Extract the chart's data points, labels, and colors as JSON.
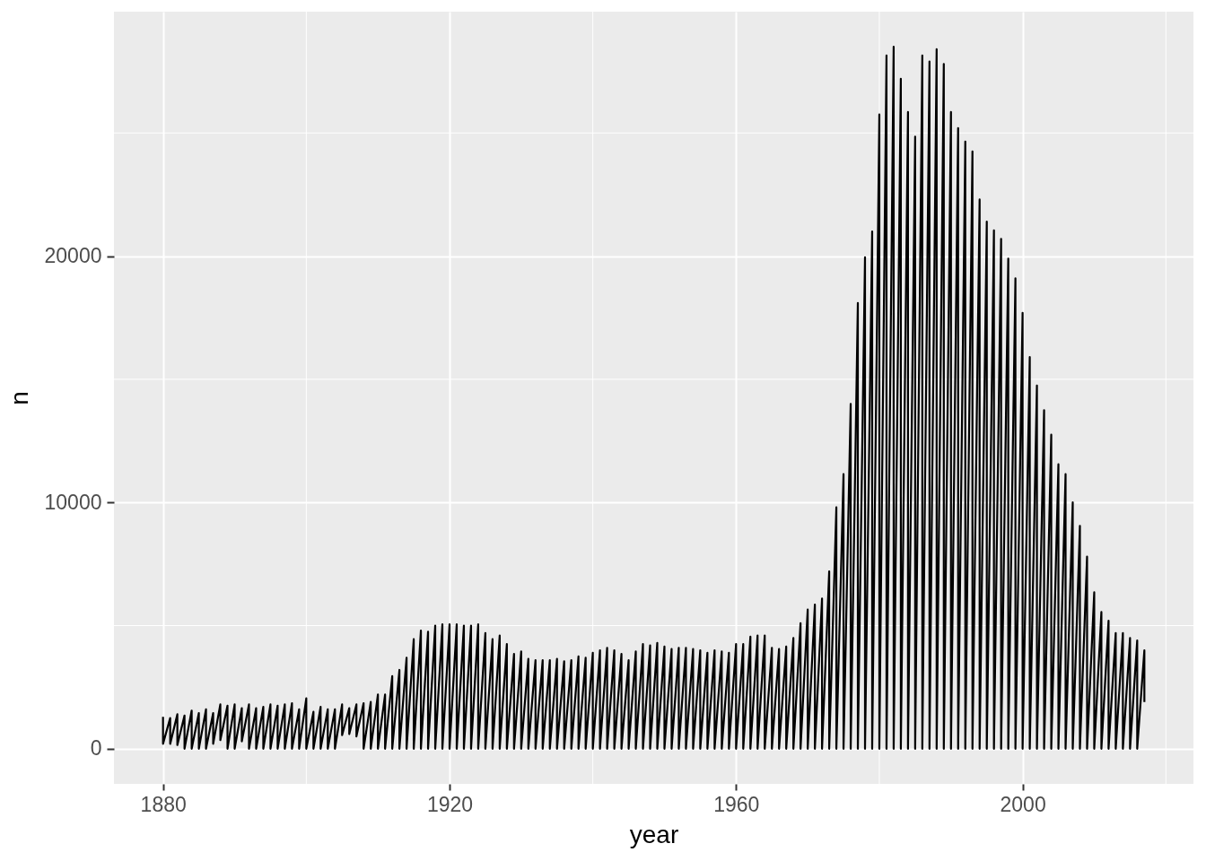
{
  "chart_data": {
    "type": "line",
    "xlabel": "year",
    "ylabel": "n",
    "x": [
      1880,
      1880,
      1881,
      1881,
      1882,
      1882,
      1883,
      1883,
      1884,
      1884,
      1885,
      1885,
      1886,
      1886,
      1887,
      1887,
      1888,
      1888,
      1889,
      1889,
      1890,
      1890,
      1891,
      1891,
      1892,
      1892,
      1893,
      1893,
      1894,
      1894,
      1895,
      1895,
      1896,
      1896,
      1897,
      1897,
      1898,
      1898,
      1899,
      1899,
      1900,
      1900,
      1901,
      1901,
      1902,
      1902,
      1903,
      1903,
      1904,
      1904,
      1905,
      1905,
      1906,
      1906,
      1907,
      1907,
      1908,
      1908,
      1909,
      1909,
      1910,
      1910,
      1911,
      1911,
      1912,
      1912,
      1913,
      1913,
      1914,
      1914,
      1915,
      1915,
      1916,
      1916,
      1917,
      1917,
      1918,
      1918,
      1919,
      1919,
      1920,
      1920,
      1921,
      1921,
      1922,
      1922,
      1923,
      1923,
      1924,
      1924,
      1925,
      1925,
      1926,
      1926,
      1927,
      1927,
      1928,
      1928,
      1929,
      1929,
      1930,
      1930,
      1931,
      1931,
      1932,
      1932,
      1933,
      1933,
      1934,
      1934,
      1935,
      1935,
      1936,
      1936,
      1937,
      1937,
      1938,
      1938,
      1939,
      1939,
      1940,
      1940,
      1941,
      1941,
      1942,
      1942,
      1943,
      1943,
      1944,
      1944,
      1945,
      1945,
      1946,
      1946,
      1947,
      1947,
      1948,
      1948,
      1949,
      1949,
      1950,
      1950,
      1951,
      1951,
      1952,
      1952,
      1953,
      1953,
      1954,
      1954,
      1955,
      1955,
      1956,
      1956,
      1957,
      1957,
      1958,
      1958,
      1959,
      1959,
      1960,
      1960,
      1961,
      1961,
      1962,
      1962,
      1963,
      1963,
      1964,
      1964,
      1965,
      1965,
      1966,
      1966,
      1967,
      1967,
      1968,
      1968,
      1969,
      1969,
      1970,
      1970,
      1971,
      1971,
      1972,
      1972,
      1973,
      1973,
      1974,
      1974,
      1975,
      1975,
      1976,
      1976,
      1977,
      1977,
      1978,
      1978,
      1979,
      1979,
      1980,
      1980,
      1981,
      1981,
      1982,
      1982,
      1983,
      1983,
      1984,
      1984,
      1985,
      1985,
      1986,
      1986,
      1987,
      1987,
      1988,
      1988,
      1989,
      1989,
      1990,
      1990,
      1991,
      1991,
      1992,
      1992,
      1993,
      1993,
      1994,
      1994,
      1995,
      1995,
      1996,
      1996,
      1997,
      1997,
      1998,
      1998,
      1999,
      1999,
      2000,
      2000,
      2001,
      2001,
      2002,
      2002,
      2003,
      2003,
      2004,
      2004,
      2005,
      2005,
      2006,
      2006,
      2007,
      2007,
      2008,
      2008,
      2009,
      2009,
      2010,
      2010,
      2011,
      2011,
      2012,
      2012,
      2013,
      2013,
      2014,
      2014,
      2015,
      2015,
      2016,
      2016,
      2017,
      2017
    ],
    "series": [
      {
        "color": "#000000",
        "values": [
          1300,
          200,
          1250,
          200,
          1400,
          150,
          1350,
          0,
          1550,
          0,
          1450,
          0,
          1600,
          0,
          1450,
          200,
          1800,
          350,
          1750,
          0,
          1800,
          0,
          1650,
          300,
          1800,
          0,
          1650,
          0,
          1700,
          0,
          1800,
          0,
          1750,
          0,
          1800,
          0,
          1850,
          0,
          1600,
          0,
          2050,
          0,
          1500,
          0,
          1700,
          0,
          1600,
          0,
          1600,
          0,
          1800,
          550,
          1650,
          600,
          1800,
          500,
          1850,
          0,
          1900,
          0,
          2200,
          0,
          2200,
          0,
          2950,
          0,
          3200,
          0,
          3700,
          0,
          4450,
          0,
          4800,
          0,
          4750,
          0,
          5000,
          0,
          5050,
          0,
          5050,
          0,
          5050,
          0,
          5000,
          0,
          5000,
          0,
          5050,
          0,
          4700,
          0,
          4450,
          0,
          4600,
          0,
          4250,
          0,
          3850,
          0,
          3950,
          0,
          3650,
          0,
          3600,
          0,
          3600,
          0,
          3600,
          0,
          3650,
          0,
          3550,
          0,
          3600,
          0,
          3750,
          0,
          3700,
          0,
          3900,
          0,
          4000,
          0,
          4100,
          0,
          4000,
          0,
          3850,
          0,
          3600,
          0,
          3950,
          0,
          4250,
          0,
          4200,
          0,
          4300,
          0,
          4150,
          0,
          4050,
          0,
          4100,
          0,
          4100,
          0,
          4050,
          0,
          4000,
          0,
          3900,
          0,
          4000,
          0,
          3950,
          0,
          3900,
          0,
          4250,
          0,
          4250,
          0,
          4550,
          0,
          4600,
          0,
          4600,
          0,
          4100,
          0,
          4050,
          0,
          4150,
          0,
          4500,
          0,
          5100,
          0,
          5650,
          0,
          5850,
          0,
          6100,
          0,
          7200,
          0,
          9800,
          0,
          11150,
          0,
          14000,
          0,
          18100,
          0,
          19950,
          0,
          21000,
          0,
          25750,
          0,
          28150,
          0,
          28500,
          0,
          27200,
          0,
          25850,
          0,
          24850,
          0,
          28150,
          0,
          27900,
          0,
          28400,
          0,
          27800,
          0,
          25850,
          0,
          25200,
          0,
          24650,
          0,
          24250,
          0,
          22300,
          0,
          21400,
          0,
          21050,
          0,
          20700,
          0,
          19900,
          0,
          19100,
          0,
          17700,
          0,
          15900,
          0,
          14750,
          0,
          13750,
          0,
          12750,
          0,
          11550,
          0,
          11150,
          0,
          10000,
          0,
          9050,
          0,
          7800,
          0,
          6350,
          0,
          5550,
          0,
          5200,
          0,
          4700,
          0,
          4700,
          0,
          4500,
          0,
          4400,
          0,
          4000,
          1900
        ]
      }
    ],
    "xlim": [
      1873.15,
      2023.85
    ],
    "ylim": [
      -1425,
      29925
    ],
    "xticks": [
      1880,
      1920,
      1960,
      2000
    ],
    "yticks": [
      0,
      10000,
      20000
    ],
    "grid": true
  }
}
